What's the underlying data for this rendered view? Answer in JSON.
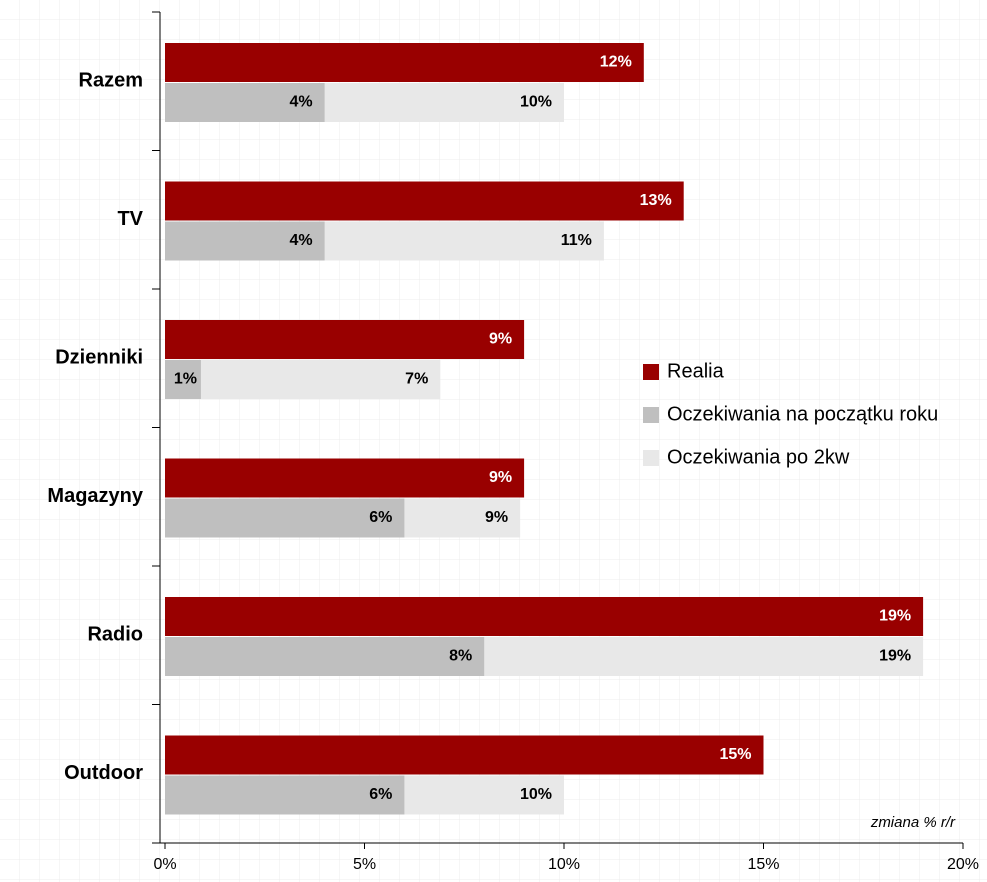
{
  "chart_data": {
    "type": "hbar_overlap",
    "categories": [
      "Razem",
      "TV",
      "Dzienniki",
      "Magazyny",
      "Radio",
      "Outdoor"
    ],
    "series": [
      {
        "name": "Realia",
        "color": "#990000",
        "values": [
          12,
          13,
          9,
          9,
          19,
          15
        ],
        "value_labels": [
          "12%",
          "13%",
          "9%",
          "9%",
          "19%",
          "15%"
        ]
      },
      {
        "name": "Oczekiwania na początku roku",
        "color": "#bfbfbf",
        "values": [
          4,
          4,
          0.9,
          6,
          8,
          6
        ],
        "value_labels": [
          "4%",
          "4%",
          "1%",
          "6%",
          "8%",
          "6%"
        ]
      },
      {
        "name": "Oczekiwania po 2kw",
        "color": "#e8e8e8",
        "values": [
          10,
          11,
          6.9,
          8.9,
          19,
          10
        ],
        "value_labels": [
          "10%",
          "11%",
          "7%",
          "9%",
          "19%",
          "10%"
        ]
      }
    ],
    "xlim": [
      0,
      20
    ],
    "xticks": [
      {
        "value": 0,
        "label": "0%"
      },
      {
        "value": 5,
        "label": "5%"
      },
      {
        "value": 10,
        "label": "10%"
      },
      {
        "value": 15,
        "label": "15%"
      },
      {
        "value": 20,
        "label": "20%"
      }
    ],
    "annotation": "zmiana % r/r",
    "legend": "right"
  }
}
